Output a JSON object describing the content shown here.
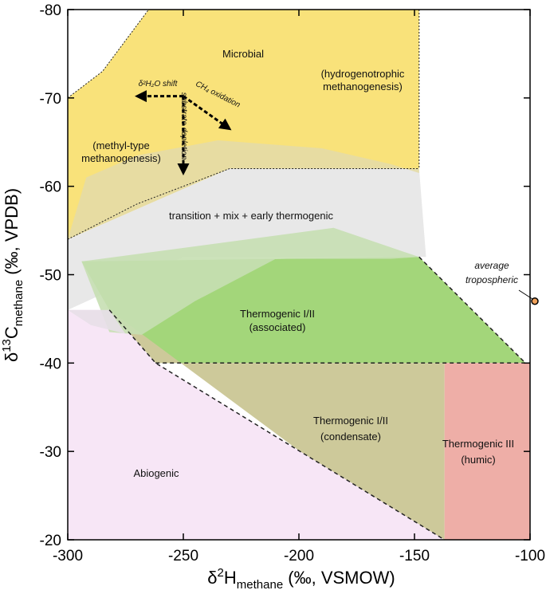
{
  "chart_data": {
    "type": "area",
    "xlabel": {
      "main": "δ",
      "sup": "2",
      "mid": "H",
      "sub": "methane",
      "tail": " (‰, VSMOW)"
    },
    "ylabel": {
      "main": "δ",
      "sup": "13",
      "mid": "C",
      "sub": "methane",
      "tail": " (‰, VPDB)"
    },
    "xlim": [
      -300,
      -100
    ],
    "ylim": [
      -20,
      -80
    ],
    "x_ticks": [
      -300,
      -250,
      -200,
      -150,
      -100
    ],
    "y_ticks": [
      -80,
      -70,
      -60,
      -50,
      -40,
      -30,
      -20
    ],
    "grid": false,
    "regions": [
      {
        "label": "Microbial",
        "label_lines": [
          "Microbial"
        ],
        "color": "#f9e27a",
        "polygon": [
          [
            -300,
            -54
          ],
          [
            -300,
            -70
          ],
          [
            -285,
            -73
          ],
          [
            -265,
            -80
          ],
          [
            -148,
            -80
          ],
          [
            -148,
            -62
          ],
          [
            -230,
            -62
          ],
          [
            -300,
            -54
          ]
        ]
      },
      {
        "label": "transition + mix + early thermogenic",
        "label_lines": [
          "transition + mix + early thermogenic"
        ],
        "color": "#e8e8e8",
        "polygon": [
          [
            -300,
            -54
          ],
          [
            -230,
            -62
          ],
          [
            -148,
            -62
          ],
          [
            -145,
            -52
          ],
          [
            -250,
            -52
          ],
          [
            -300,
            -46
          ]
        ]
      },
      {
        "label": "Thermogenic I/II (associated)",
        "label_lines": [
          "Thermogenic I/II",
          "(associated)"
        ],
        "color": "#a3d67a",
        "polygon": [
          [
            -294,
            -51.5
          ],
          [
            -148,
            -52
          ],
          [
            -102,
            -40
          ],
          [
            -262,
            -40
          ],
          [
            -282,
            -46
          ]
        ]
      },
      {
        "label": "Thermogenic I/II (condensate)",
        "label_lines": [
          "Thermogenic I/II",
          "(condensate)"
        ],
        "color": "#cdc99a",
        "polygon": [
          [
            -262,
            -40
          ],
          [
            -137,
            -40
          ],
          [
            -137,
            -20
          ],
          [
            -148,
            -20
          ],
          [
            -282,
            -46
          ]
        ]
      },
      {
        "label": "Thermogenic III (humic)",
        "label_lines": [
          "Thermogenic III",
          "(humic)"
        ],
        "color": "#eeaea7",
        "polygon": [
          [
            -137,
            -40
          ],
          [
            -100,
            -40
          ],
          [
            -100,
            -20
          ],
          [
            -137,
            -20
          ]
        ]
      },
      {
        "label": "Abiogenic",
        "label_lines": [
          "Abiogenic"
        ],
        "color": "#f7e6f6",
        "polygon": [
          [
            -300,
            -46
          ],
          [
            -282,
            -46
          ],
          [
            -262,
            -40
          ],
          [
            -137,
            -20
          ],
          [
            -300,
            -20
          ]
        ]
      }
    ],
    "labels": {
      "microbial": "Microbial",
      "hydrogenotrophic": [
        "(hydrogenotrophic",
        "methanogenesis)"
      ],
      "methyl": [
        "(methyl-type",
        "methanogenesis)"
      ],
      "transition": "transition + mix + early thermogenic",
      "associated": [
        "Thermogenic I/II",
        "(associated)"
      ],
      "condensate": [
        "Thermogenic I/II",
        "(condensate)"
      ],
      "humic": [
        "Thermogenic III",
        "(humic)"
      ],
      "abiogenic": "Abiogenic",
      "tropospheric": [
        "average",
        "tropospheric"
      ]
    },
    "arrows": {
      "h2o_shift": {
        "label": "δ²H₂O shift",
        "from": [
          -250,
          -70.2
        ],
        "to": [
          -270,
          -70.2
        ]
      },
      "ch4_oxidation": {
        "label": "CH₄ oxidation",
        "from": [
          -250,
          -70.2
        ],
        "to": [
          -230,
          -66.5
        ]
      },
      "substrate_depletion": {
        "label": "substrate depletion",
        "from": [
          -250,
          -70.2
        ],
        "to": [
          -250,
          -61.5
        ]
      }
    },
    "point": {
      "name": "average tropospheric",
      "x": -100,
      "y": -47,
      "color": "#f0a15a"
    }
  },
  "colors": {
    "microbial": "#f9e27a",
    "transition": "#e8e8e8",
    "associated": "#a3d67a",
    "condensate": "#cdc99a",
    "humic": "#eeaea7",
    "abiogenic": "#f7e6f6",
    "point": "#f0a15a"
  }
}
